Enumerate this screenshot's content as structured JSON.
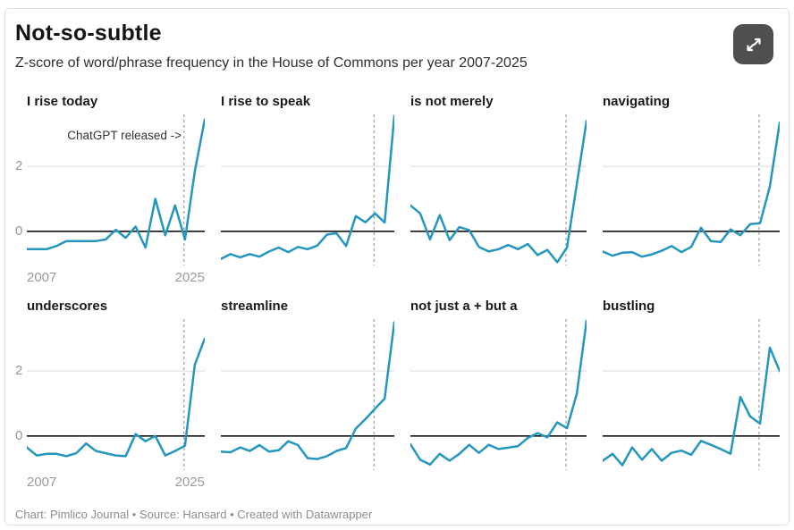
{
  "header": {
    "title": "Not-so-subtle",
    "subtitle": "Z-score of word/phrase frequency in the House of Commons per year 2007-2025"
  },
  "axis": {
    "y_tick_upper": "2",
    "y_tick_zero": "0",
    "x_start_label": "2007",
    "x_end_label": "2025"
  },
  "footer": {
    "text": "Chart: Pimlico Journal • Source: Hansard • Created with Datawrapper"
  },
  "icons": {
    "expand_button": "expand-diagonal-arrows-icon"
  },
  "colors": {
    "line": "#2596bd",
    "zero_line": "#121212",
    "gridline": "#dcdcdc",
    "dashed_line": "#ababab",
    "axis_label": "#9a9a9a",
    "button_bg": "#4f4f4f"
  },
  "chart_data": {
    "type": "line",
    "layout": "small multiples, 2 rows x 4 columns, shared axes",
    "title": "Not-so-subtle",
    "subtitle": "Z-score of word/phrase frequency in the House of Commons per year 2007-2025",
    "xlabel": "",
    "ylabel": "Z-score",
    "x": [
      2007,
      2008,
      2009,
      2010,
      2011,
      2012,
      2013,
      2014,
      2015,
      2016,
      2017,
      2018,
      2019,
      2020,
      2021,
      2022,
      2023,
      2024,
      2025
    ],
    "ylim": [
      -1.05,
      3.6
    ],
    "y_gridlines": [
      0,
      2
    ],
    "x_tick_labels_shown": [
      "2007",
      "2025"
    ],
    "annotation_x": 2022.9,
    "annotation_label": "ChatGPT released ->",
    "legend": "none (each panel titled by its phrase)",
    "series": [
      {
        "name": "I rise today",
        "values": [
          -0.55,
          -0.55,
          -0.55,
          -0.45,
          -0.3,
          -0.3,
          -0.3,
          -0.3,
          -0.25,
          0.05,
          -0.2,
          0.15,
          -0.5,
          1.0,
          -0.12,
          0.8,
          -0.25,
          1.85,
          3.45
        ]
      },
      {
        "name": "I rise to speak",
        "values": [
          -0.85,
          -0.7,
          -0.8,
          -0.7,
          -0.78,
          -0.62,
          -0.5,
          -0.64,
          -0.48,
          -0.55,
          -0.44,
          -0.1,
          -0.06,
          -0.45,
          0.47,
          0.28,
          0.55,
          0.27,
          3.55
        ]
      },
      {
        "name": "is not merely",
        "values": [
          0.8,
          0.55,
          -0.25,
          0.5,
          -0.27,
          0.13,
          0.04,
          -0.48,
          -0.62,
          -0.55,
          -0.42,
          -0.55,
          -0.39,
          -0.73,
          -0.57,
          -0.95,
          -0.5,
          1.45,
          3.4
        ]
      },
      {
        "name": "navigating",
        "values": [
          -0.62,
          -0.75,
          -0.66,
          -0.64,
          -0.78,
          -0.71,
          -0.6,
          -0.45,
          -0.64,
          -0.48,
          0.11,
          -0.3,
          -0.33,
          0.06,
          -0.12,
          0.22,
          0.25,
          1.38,
          3.35
        ]
      },
      {
        "name": "underscores",
        "values": [
          -0.35,
          -0.6,
          -0.55,
          -0.55,
          -0.62,
          -0.53,
          -0.23,
          -0.46,
          -0.53,
          -0.6,
          -0.62,
          0.06,
          -0.16,
          0.0,
          -0.6,
          -0.46,
          -0.3,
          2.2,
          3.0
        ]
      },
      {
        "name": "streamline",
        "values": [
          -0.48,
          -0.5,
          -0.35,
          -0.46,
          -0.28,
          -0.48,
          -0.44,
          -0.16,
          -0.28,
          -0.68,
          -0.71,
          -0.62,
          -0.46,
          -0.37,
          0.23,
          0.52,
          0.84,
          1.15,
          3.5
        ]
      },
      {
        "name": "not just a + but a",
        "values": [
          -0.25,
          -0.73,
          -0.88,
          -0.55,
          -0.76,
          -0.55,
          -0.27,
          -0.52,
          -0.27,
          -0.4,
          -0.36,
          -0.31,
          -0.06,
          0.09,
          -0.04,
          0.42,
          0.24,
          1.3,
          3.55
        ]
      },
      {
        "name": "bustling",
        "values": [
          -0.76,
          -0.55,
          -0.9,
          -0.35,
          -0.73,
          -0.4,
          -0.76,
          -0.52,
          -0.45,
          -0.58,
          -0.15,
          -0.27,
          -0.4,
          -0.55,
          1.2,
          0.6,
          0.38,
          2.72,
          2.0
        ]
      }
    ]
  }
}
